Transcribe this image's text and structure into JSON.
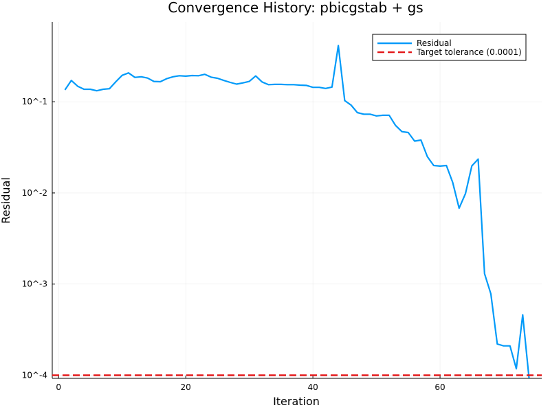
{
  "chart_data": {
    "type": "line",
    "title": "Convergence History: pbicgstab + gs",
    "xlabel": "Iteration",
    "ylabel": "Residual",
    "yscale": "log",
    "xlim": [
      -1,
      76
    ],
    "ylim": [
      9.25e-05,
      0.75
    ],
    "grid": true,
    "legend_position": "top-right",
    "x_ticks": [
      {
        "value": 0,
        "label": "0"
      },
      {
        "value": 20,
        "label": "20"
      },
      {
        "value": 40,
        "label": "40"
      },
      {
        "value": 60,
        "label": "60"
      }
    ],
    "y_ticks": [
      {
        "value": 0.1,
        "label": "10^-1"
      },
      {
        "value": 0.01,
        "label": "10^-2"
      },
      {
        "value": 0.001,
        "label": "10^-3"
      },
      {
        "value": 0.0001,
        "label": "10^-4"
      }
    ],
    "series": [
      {
        "name": "Residual",
        "color": "#009af9",
        "style": "solid",
        "x": [
          1,
          2,
          3,
          4,
          5,
          6,
          7,
          8,
          9,
          10,
          11,
          12,
          13,
          14,
          15,
          16,
          17,
          18,
          19,
          20,
          21,
          22,
          23,
          24,
          25,
          26,
          27,
          28,
          29,
          30,
          31,
          32,
          33,
          34,
          35,
          36,
          37,
          38,
          39,
          40,
          41,
          42,
          43,
          44,
          45,
          46,
          47,
          48,
          49,
          50,
          51,
          52,
          53,
          54,
          55,
          56,
          57,
          58,
          59,
          60,
          61,
          62,
          63,
          64,
          65,
          66,
          67,
          68,
          69,
          70,
          71,
          72,
          73,
          74
        ],
        "y": [
          0.135,
          0.171,
          0.148,
          0.137,
          0.137,
          0.132,
          0.137,
          0.139,
          0.166,
          0.195,
          0.207,
          0.185,
          0.188,
          0.182,
          0.167,
          0.166,
          0.179,
          0.188,
          0.193,
          0.191,
          0.194,
          0.193,
          0.2,
          0.186,
          0.181,
          0.171,
          0.163,
          0.156,
          0.161,
          0.167,
          0.192,
          0.165,
          0.154,
          0.155,
          0.155,
          0.154,
          0.154,
          0.152,
          0.151,
          0.144,
          0.144,
          0.14,
          0.145,
          0.414,
          0.103,
          0.092,
          0.076,
          0.073,
          0.073,
          0.07,
          0.071,
          0.071,
          0.055,
          0.047,
          0.046,
          0.037,
          0.038,
          0.025,
          0.02,
          0.0197,
          0.02,
          0.013,
          0.0068,
          0.0098,
          0.0198,
          0.0235,
          0.0013,
          0.00078,
          0.00022,
          0.00021,
          0.00021,
          0.000118,
          0.00046,
          9.3e-05
        ]
      },
      {
        "name": "Target tolerance (0.0001)",
        "color": "#e31a1c",
        "style": "dashed",
        "y_constant": 0.0001
      }
    ]
  }
}
